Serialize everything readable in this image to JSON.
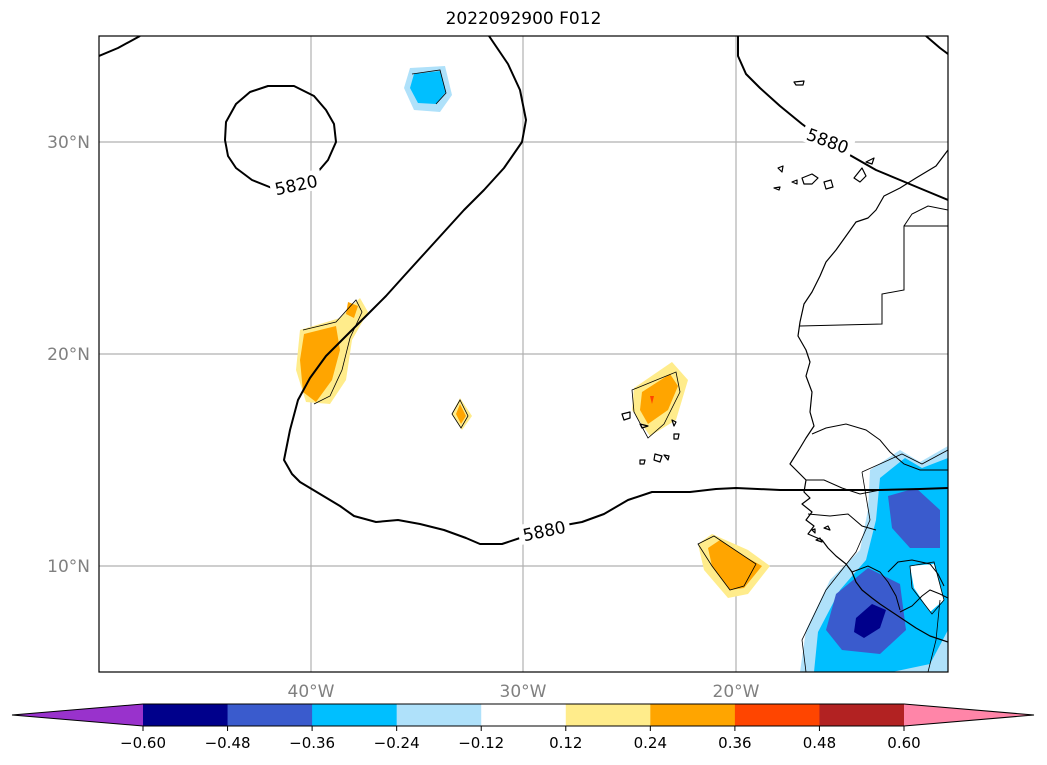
{
  "title": "2022092900 F012",
  "map": {
    "lat_labels": [
      "30°N",
      "20°N",
      "10°N"
    ],
    "lon_labels": [
      "40°W",
      "30°W",
      "20°W"
    ],
    "contour_labels": {
      "upper_right": "5880",
      "upper_left": "5820",
      "lower_mid": "5880"
    }
  },
  "colorbar": {
    "ticks": [
      "−0.60",
      "−0.48",
      "−0.36",
      "−0.24",
      "−0.12",
      "0.12",
      "0.24",
      "0.36",
      "0.48",
      "0.60"
    ],
    "colors": [
      "#9932cc",
      "#00008b",
      "#3a5bcd",
      "#00bfff",
      "#afe1fa",
      "#ffffff",
      "#ffec8b",
      "#ffa500",
      "#ff4500",
      "#b22222",
      "#ff85a8"
    ]
  }
}
